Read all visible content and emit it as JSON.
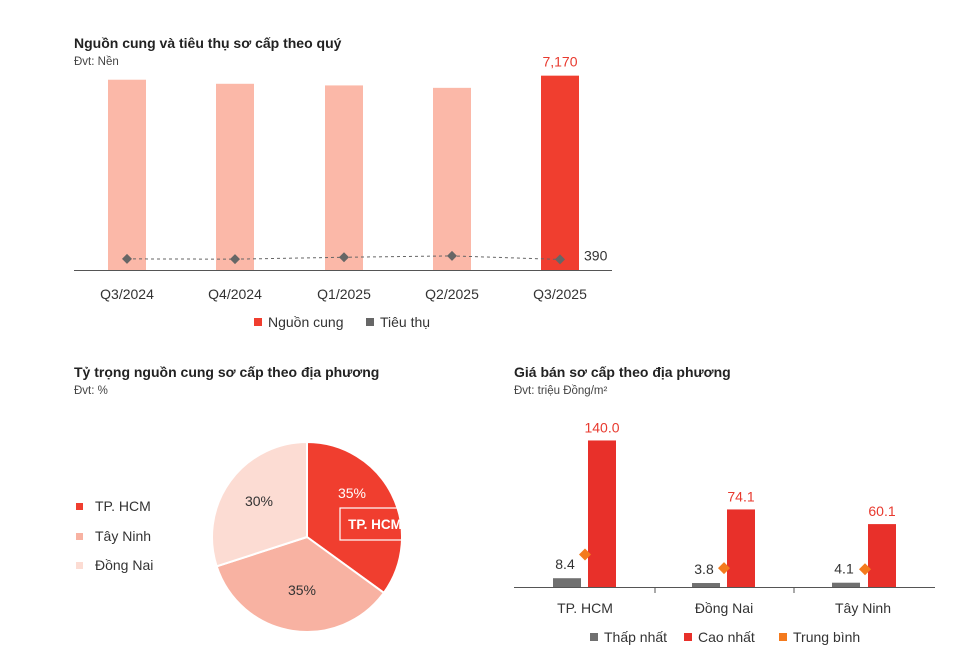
{
  "colors": {
    "supply": "#fbb8a8",
    "supply_highlight": "#f03e2f",
    "sales": "#666666",
    "hcm": "#f03e2f",
    "tay_ninh": "#f8b2a2",
    "dong_nai": "#fcdcd3",
    "low": "#707070",
    "high": "#e8302a",
    "avg": "#f47a1d"
  },
  "chart_data": [
    {
      "type": "bar",
      "title": "Nguồn cung và tiêu thụ sơ cấp theo quý",
      "unit": "Đvt: Nền",
      "categories": [
        "Q3/2024",
        "Q4/2024",
        "Q1/2025",
        "Q2/2025",
        "Q3/2025"
      ],
      "series": [
        {
          "name": "Nguồn cung",
          "values": [
            7020,
            6870,
            6810,
            6720,
            7170
          ]
        },
        {
          "name": "Tiêu thụ",
          "values": [
            410,
            400,
            470,
            520,
            390
          ]
        }
      ],
      "data_labels": {
        "supply_last": "7,170",
        "sales_last": "390"
      },
      "ylim": [
        0,
        7600
      ]
    },
    {
      "type": "pie",
      "title": "Tỷ trọng nguồn cung sơ cấp theo địa phương",
      "unit": "Đvt: %",
      "labels": [
        "TP. HCM",
        "Tây Ninh",
        "Đồng Nai"
      ],
      "values": [
        35,
        35,
        30
      ],
      "value_labels": [
        "35%",
        "35%",
        "30%"
      ],
      "callout": "TP. HCM"
    },
    {
      "type": "bar",
      "title": "Giá bán sơ cấp theo địa phương",
      "unit": "Đvt: triệu Đồng/m²",
      "categories": [
        "TP. HCM",
        "Đồng Nai",
        "Tây Ninh"
      ],
      "series": [
        {
          "name": "Thấp nhất",
          "values": [
            8.4,
            3.8,
            4.1
          ],
          "labels": [
            "8.4",
            "3.8",
            "4.1"
          ]
        },
        {
          "name": "Cao nhất",
          "values": [
            140.0,
            74.1,
            60.1
          ],
          "labels": [
            "140.0",
            "74.1",
            "60.1"
          ]
        },
        {
          "name": "Trung bình",
          "values": [
            31,
            18,
            17
          ]
        }
      ],
      "ylim": [
        0,
        150
      ]
    }
  ]
}
